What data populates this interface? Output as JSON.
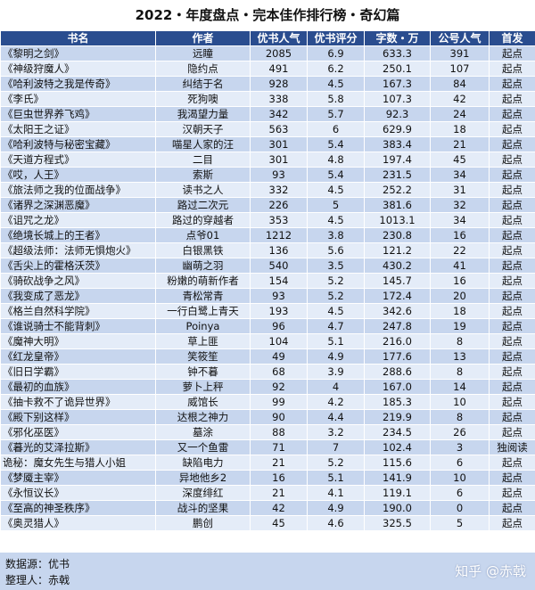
{
  "title": "2022・年度盘点・完本佳作排行榜・奇幻篇",
  "columns": [
    "书名",
    "作者",
    "优书人气",
    "优书评分",
    "字数・万",
    "公号人气",
    "首发"
  ],
  "rows": [
    [
      "《黎明之剑》",
      "远瞳",
      "2085",
      "6.9",
      "633.3",
      "391",
      "起点"
    ],
    [
      "《神级狩魔人》",
      "隐约点",
      "491",
      "6.2",
      "250.1",
      "107",
      "起点"
    ],
    [
      "《哈利波特之我是传奇》",
      "纠结于名",
      "928",
      "4.5",
      "167.3",
      "84",
      "起点"
    ],
    [
      "《李氏》",
      "死狗噢",
      "338",
      "5.8",
      "107.3",
      "42",
      "起点"
    ],
    [
      "《巨虫世界养飞鸡》",
      "我渴望力量",
      "342",
      "5.7",
      "92.3",
      "24",
      "起点"
    ],
    [
      "《太阳王之证》",
      "汉朝天子",
      "563",
      "6",
      "629.9",
      "18",
      "起点"
    ],
    [
      "《哈利波特与秘密宝藏》",
      "喵星人家的汪",
      "301",
      "5.4",
      "383.4",
      "21",
      "起点"
    ],
    [
      "《天道方程式》",
      "二目",
      "301",
      "4.8",
      "197.4",
      "45",
      "起点"
    ],
    [
      "《哎，人王》",
      "索斯",
      "93",
      "5.4",
      "231.5",
      "34",
      "起点"
    ],
    [
      "《旅法师之我的位面战争》",
      "读书之人",
      "332",
      "4.5",
      "252.2",
      "31",
      "起点"
    ],
    [
      "《诸界之深渊恶魔》",
      "路过二次元",
      "226",
      "5",
      "381.6",
      "32",
      "起点"
    ],
    [
      "《诅咒之龙》",
      "路过的穿越者",
      "353",
      "4.5",
      "1013.1",
      "34",
      "起点"
    ],
    [
      "《绝境长城上的王者》",
      "点爷01",
      "1212",
      "3.8",
      "230.8",
      "16",
      "起点"
    ],
    [
      "《超级法师：法师无惧炮火》",
      "白银黑铁",
      "136",
      "5.6",
      "121.2",
      "22",
      "起点"
    ],
    [
      "《舌尖上的霍格沃茨》",
      "幽萌之羽",
      "540",
      "3.5",
      "430.2",
      "41",
      "起点"
    ],
    [
      "《骑砍战争之风》",
      "粉嫩的萌新作者",
      "154",
      "5.2",
      "145.7",
      "16",
      "起点"
    ],
    [
      "《我变成了恶龙》",
      "青松常青",
      "93",
      "5.2",
      "172.4",
      "20",
      "起点"
    ],
    [
      "《格兰自然科学院》",
      "一行白鹭上青天",
      "193",
      "4.5",
      "342.6",
      "18",
      "起点"
    ],
    [
      "《谁说骑士不能背刺》",
      "Poinya",
      "96",
      "4.7",
      "247.8",
      "19",
      "起点"
    ],
    [
      "《魔神大明》",
      "草上匪",
      "104",
      "5.1",
      "216.0",
      "8",
      "起点"
    ],
    [
      "《红龙皇帝》",
      "笑筱笙",
      "49",
      "4.9",
      "177.6",
      "13",
      "起点"
    ],
    [
      "《旧日学霸》",
      "钟不暮",
      "68",
      "3.9",
      "288.6",
      "8",
      "起点"
    ],
    [
      "《最初的血族》",
      "萝卜上秤",
      "92",
      "4",
      "167.0",
      "14",
      "起点"
    ],
    [
      "《抽卡救不了诡异世界》",
      "威馆长",
      "99",
      "4.2",
      "185.3",
      "10",
      "起点"
    ],
    [
      "《殿下别这样》",
      "达根之神力",
      "90",
      "4.4",
      "219.9",
      "8",
      "起点"
    ],
    [
      "《邪化巫医》",
      "墓涂",
      "88",
      "3.2",
      "234.5",
      "26",
      "起点"
    ],
    [
      "《暮光的艾泽拉斯》",
      "又一个鱼雷",
      "71",
      "7",
      "102.4",
      "3",
      "独阅读"
    ],
    [
      "诡秘：魔女先生与猎人小姐",
      "缺陷电力",
      "21",
      "5.2",
      "115.6",
      "6",
      "起点"
    ],
    [
      "《梦魇主宰》",
      "异地他乡2",
      "16",
      "5.1",
      "141.9",
      "10",
      "起点"
    ],
    [
      "《永恒议长》",
      "深度绯红",
      "21",
      "4.1",
      "119.1",
      "6",
      "起点"
    ],
    [
      "《至高的神圣秩序》",
      "战斗的坚果",
      "42",
      "4.9",
      "190.0",
      "0",
      "起点"
    ],
    [
      "《奥灵猎人》",
      "鹏创",
      "45",
      "4.6",
      "325.5",
      "5",
      "起点"
    ]
  ],
  "footer": {
    "source": "数据源：优书",
    "compiler": "整理人：赤戟"
  },
  "watermark": "知乎 @赤戟",
  "colors": {
    "header_bg": "#2a4d8f",
    "row_dark": "#c7d6ee",
    "row_light": "#e4ecf8"
  }
}
